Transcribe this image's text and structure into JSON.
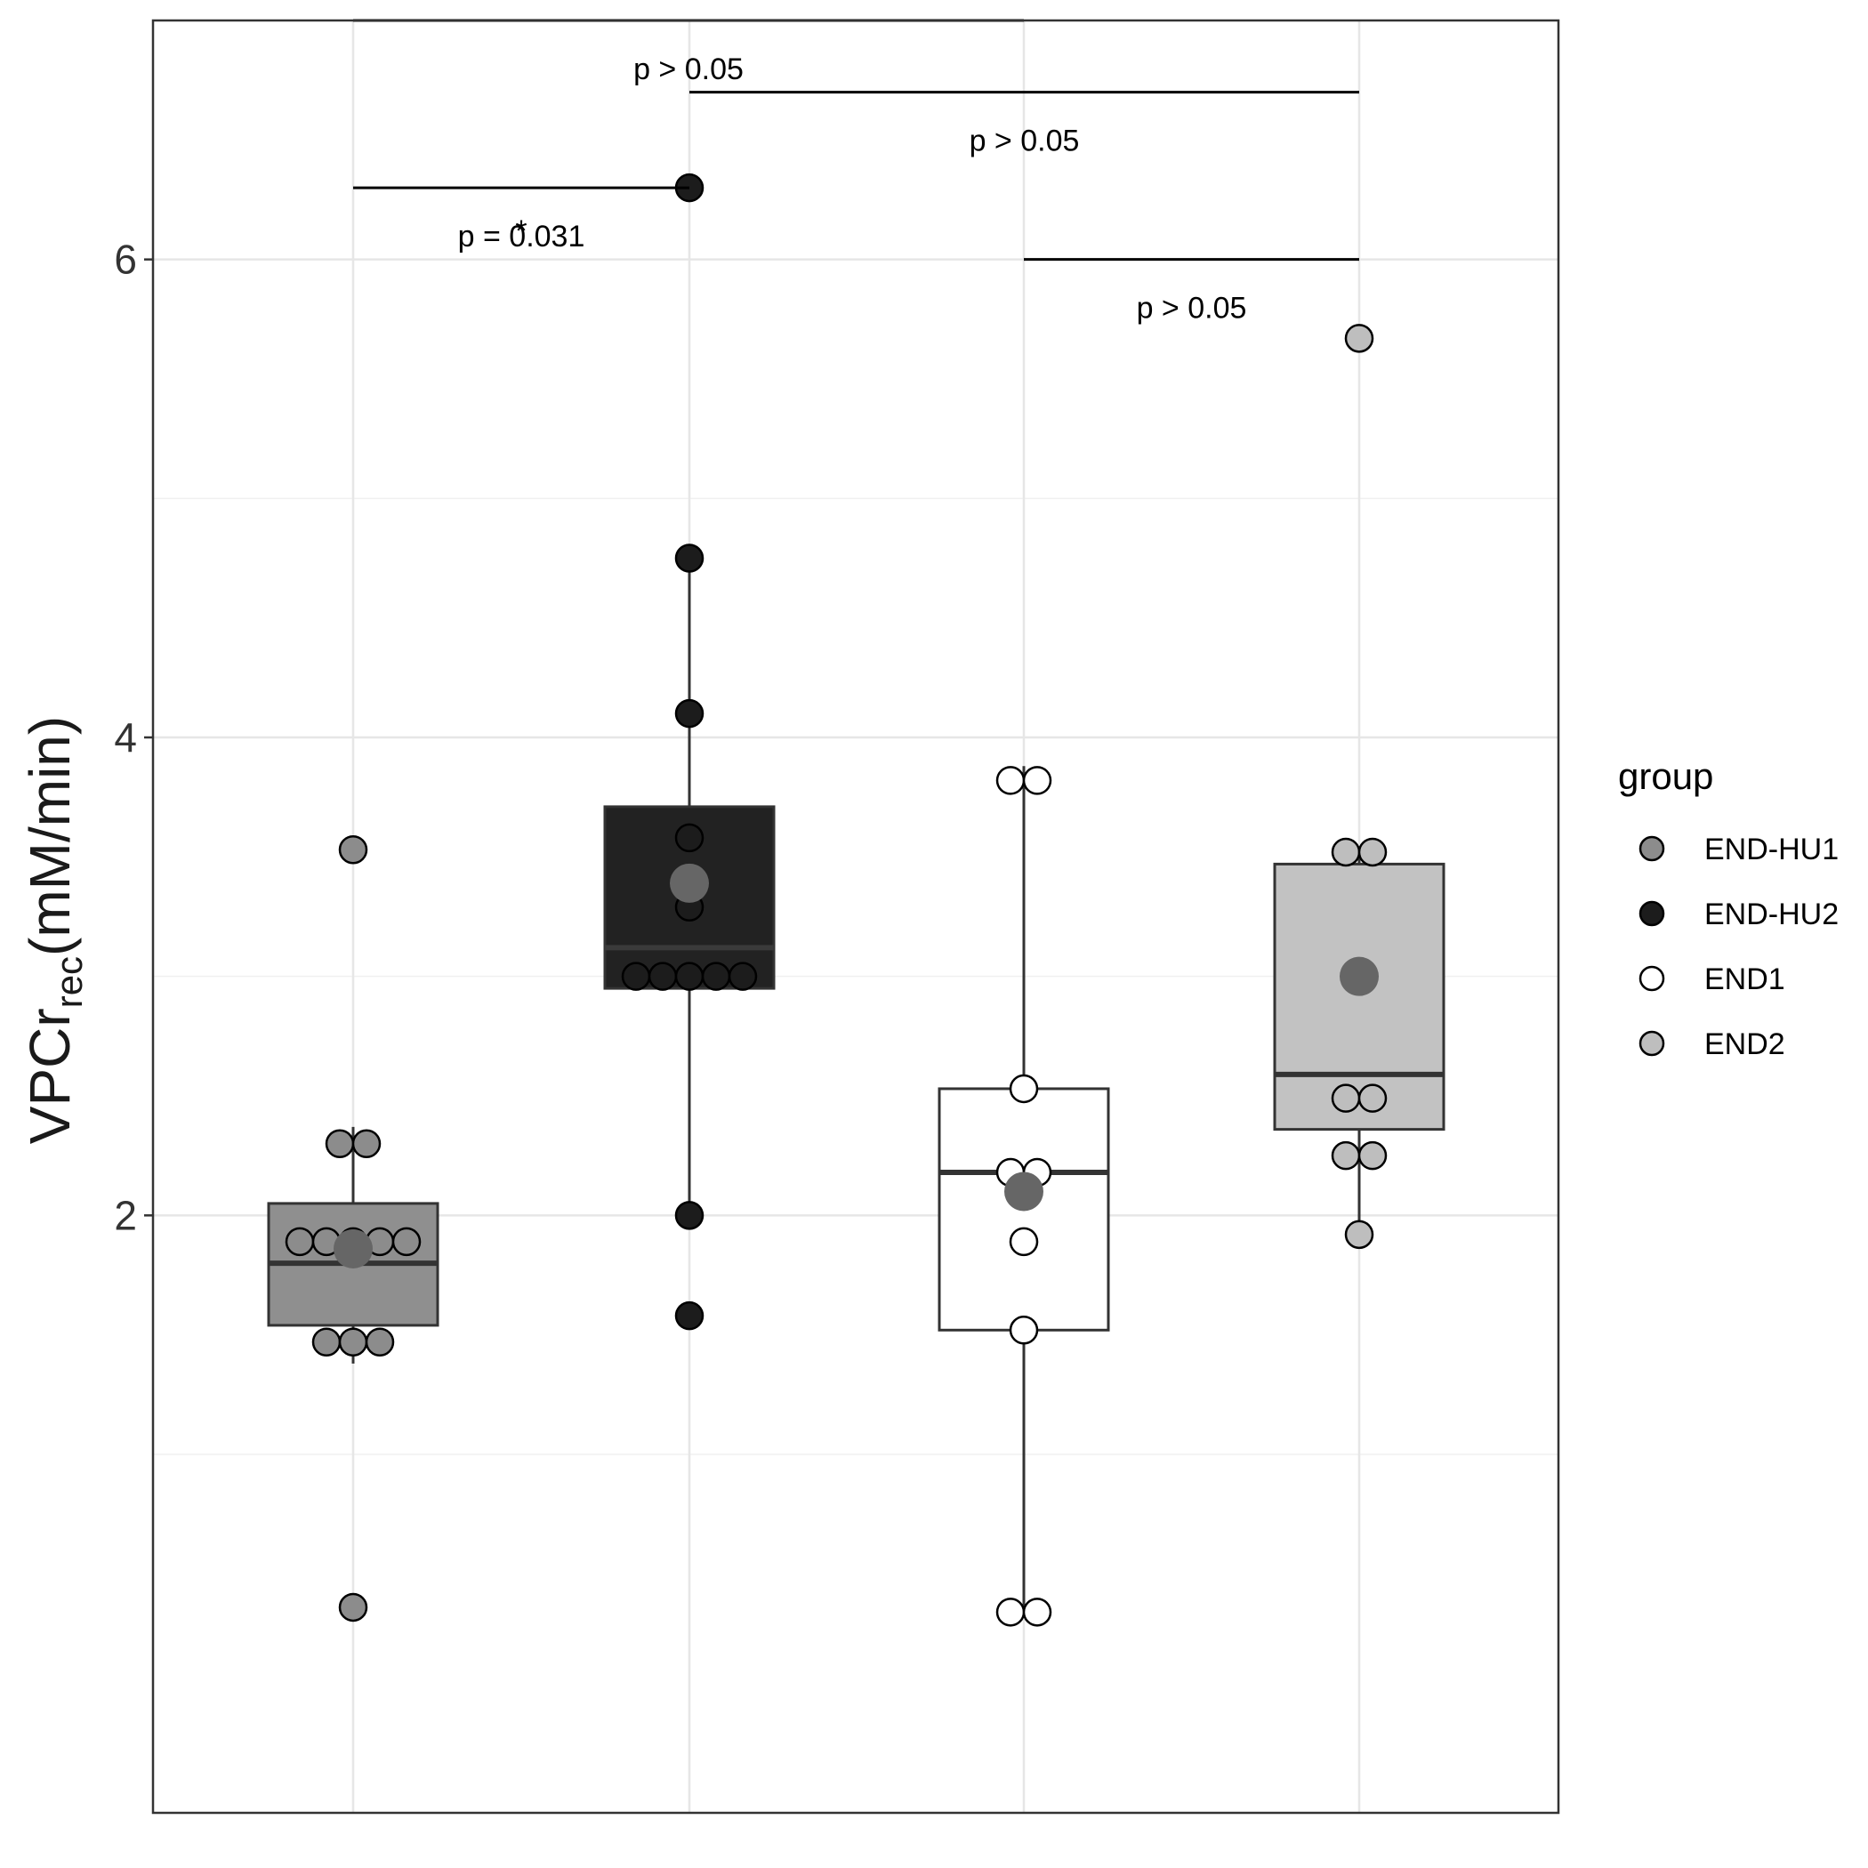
{
  "chart_data": {
    "type": "boxplot",
    "y_axis": {
      "label_main": "VPCr",
      "label_sub": "rec",
      "label_units": "(mM/min)",
      "range": [
        -0.5,
        7.0
      ],
      "ticks": [
        "2",
        "4",
        "6"
      ],
      "tick_values": [
        2,
        4,
        6
      ],
      "minor_ticks": [
        1,
        3,
        5,
        7
      ]
    },
    "x_axis": {
      "label": "",
      "tick_labels": []
    },
    "grid": true,
    "legend": {
      "title": "group",
      "position": "right",
      "items": [
        "END-HU1",
        "END-HU2",
        "END1",
        "END2"
      ]
    },
    "groups": [
      {
        "name": "END-HU1",
        "fill": "#8f8f8f",
        "point_fill": "#8c8c8c",
        "median_color": "#333333",
        "mean_color": "#666666",
        "box": {
          "q1": 1.54,
          "median": 1.8,
          "q3": 2.05,
          "whisker_low": 1.38,
          "whisker_high": 2.37
        },
        "mean": 1.86,
        "points": [
          0.36,
          1.47,
          1.47,
          1.47,
          1.89,
          1.89,
          1.89,
          1.89,
          1.89,
          2.3,
          2.3,
          3.53
        ]
      },
      {
        "name": "END-HU2",
        "fill": "#222222",
        "point_fill": "#1c1c1c",
        "median_color": "#3a3a3a",
        "mean_color": "#666666",
        "box": {
          "q1": 2.95,
          "median": 3.12,
          "q3": 3.71,
          "whisker_low": 2.0,
          "whisker_high": 4.75
        },
        "mean": 3.39,
        "points": [
          1.58,
          2.0,
          3.0,
          3.0,
          3.0,
          3.0,
          3.0,
          3.29,
          3.58,
          4.1,
          4.75,
          6.3
        ]
      },
      {
        "name": "END1",
        "fill": "#ffffff",
        "point_fill": "#ffffff",
        "median_color": "#333333",
        "mean_color": "#666666",
        "box": {
          "q1": 1.52,
          "median": 2.18,
          "q3": 2.53,
          "whisker_low": 0.34,
          "whisker_high": 3.88
        },
        "mean": 2.1,
        "points": [
          0.34,
          0.34,
          1.52,
          1.89,
          2.18,
          2.18,
          2.53,
          3.82,
          3.82
        ]
      },
      {
        "name": "END2",
        "fill": "#c2c2c2",
        "point_fill": "#bebebe",
        "median_color": "#333333",
        "mean_color": "#666666",
        "box": {
          "q1": 2.36,
          "median": 2.59,
          "q3": 3.47,
          "whisker_low": 1.92,
          "whisker_high": 3.52
        },
        "mean": 3.0,
        "points": [
          1.92,
          2.25,
          2.25,
          2.49,
          2.49,
          3.52,
          3.52,
          5.67
        ]
      }
    ],
    "comparisons": [
      {
        "from": 0,
        "to": 2,
        "y": 7.0,
        "label": "p > 0.05",
        "star": ""
      },
      {
        "from": 1,
        "to": 3,
        "y": 6.7,
        "label": "p > 0.05",
        "star": ""
      },
      {
        "from": 0,
        "to": 1,
        "y": 6.3,
        "label": "p = 0.031",
        "star": "*"
      },
      {
        "from": 2,
        "to": 3,
        "y": 6.0,
        "label": "p > 0.05",
        "star": ""
      }
    ]
  }
}
